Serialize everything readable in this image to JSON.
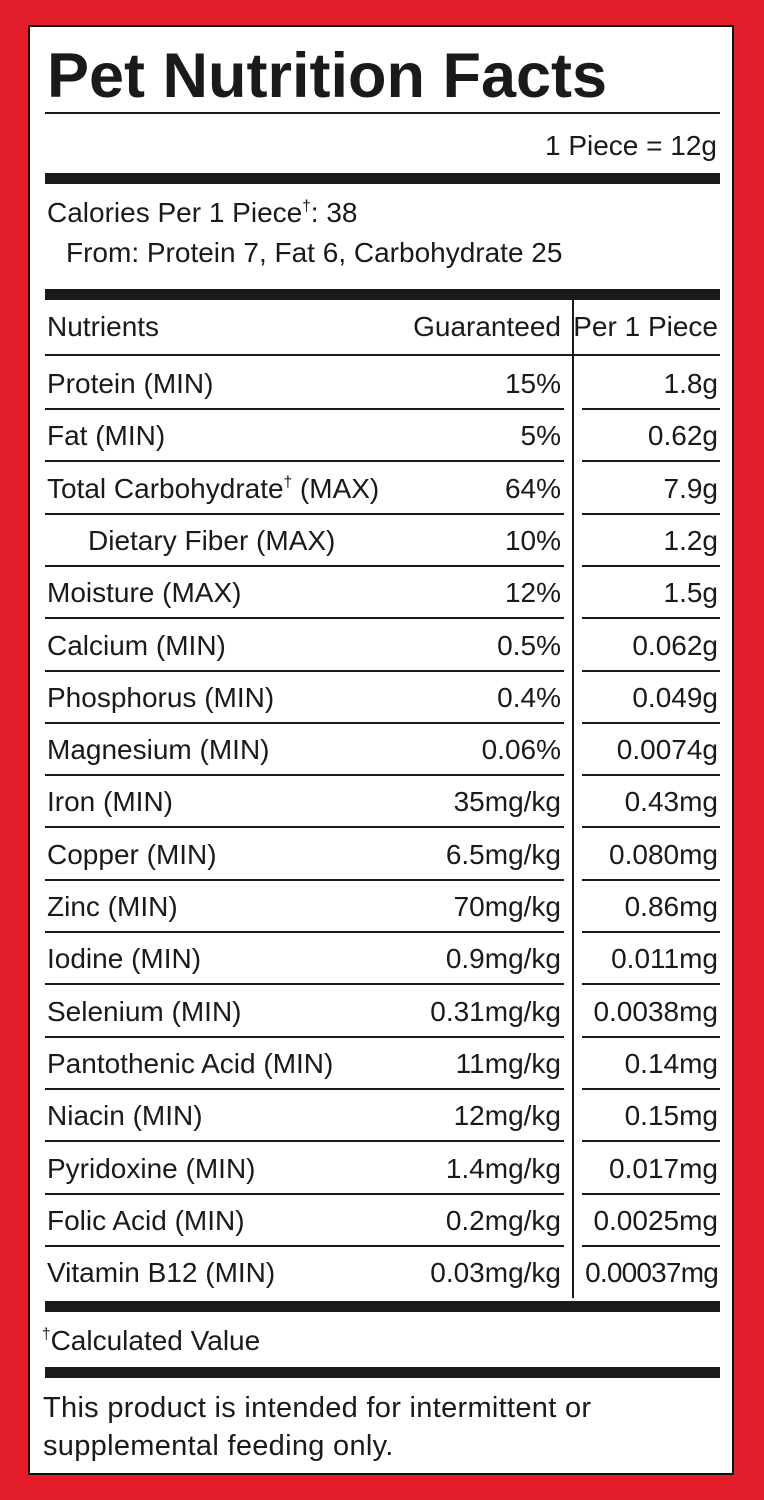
{
  "header": {
    "title": "Pet Nutrition Facts",
    "serving": "1 Piece = 12g"
  },
  "calories": {
    "line": "Calories Per 1 Piece†: 38",
    "from": "From: Protein 7, Fat 6, Carbohydrate 25"
  },
  "table": {
    "columns": [
      "Nutrients",
      "Guaranteed",
      "Per 1 Piece"
    ],
    "rows": [
      [
        "Protein (MIN)",
        "15%",
        "1.8g"
      ],
      [
        "Fat (MIN)",
        "5%",
        "0.62g"
      ],
      [
        "Total Carbohydrate† (MAX)",
        "64%",
        "7.9g"
      ],
      [
        "Dietary Fiber (MAX)",
        "10%",
        "1.2g"
      ],
      [
        "Moisture (MAX)",
        "12%",
        "1.5g"
      ],
      [
        "Calcium (MIN)",
        "0.5%",
        "0.062g"
      ],
      [
        "Phosphorus (MIN)",
        "0.4%",
        "0.049g"
      ],
      [
        "Magnesium (MIN)",
        "0.06%",
        "0.0074g"
      ],
      [
        "Iron (MIN)",
        "35mg/kg",
        "0.43mg"
      ],
      [
        "Copper (MIN)",
        "6.5mg/kg",
        "0.080mg"
      ],
      [
        "Zinc (MIN)",
        "70mg/kg",
        "0.86mg"
      ],
      [
        "Iodine (MIN)",
        "0.9mg/kg",
        "0.011mg"
      ],
      [
        "Selenium (MIN)",
        "0.31mg/kg",
        "0.0038mg"
      ],
      [
        "Pantothenic Acid (MIN)",
        "11mg/kg",
        "0.14mg"
      ],
      [
        "Niacin (MIN)",
        "12mg/kg",
        "0.15mg"
      ],
      [
        "Pyridoxine (MIN)",
        "1.4mg/kg",
        "0.017mg"
      ],
      [
        "Folic Acid (MIN)",
        "0.2mg/kg",
        "0.0025mg"
      ],
      [
        "Vitamin B12 (MIN)",
        "0.03mg/kg",
        "0.00037mg"
      ]
    ]
  },
  "footnote": "†Calculated Value",
  "disclaimer": "This product is intended for intermittent or supplemental feeding only."
}
